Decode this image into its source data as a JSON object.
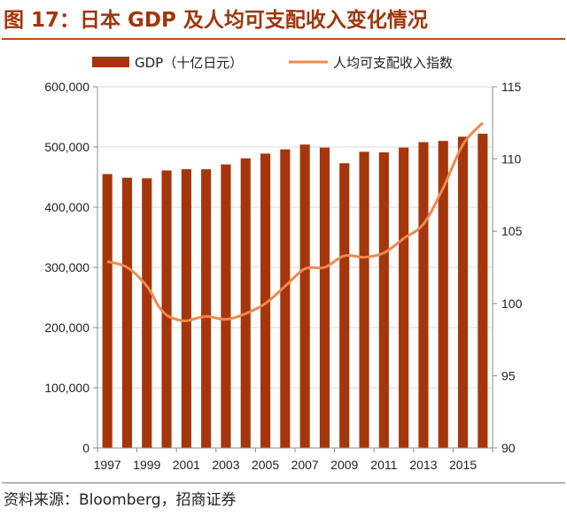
{
  "figure": {
    "title": "图 17：日本 GDP 及人均可支配收入变化情况",
    "source": "资料来源：Bloomberg，招商证券"
  },
  "colors": {
    "bar": "#a5360c",
    "line": "#f0894b",
    "title": "#a0360c"
  },
  "chart_data": {
    "type": "bar+line",
    "categories": [
      "1997",
      "1998",
      "1999",
      "2000",
      "2001",
      "2002",
      "2003",
      "2004",
      "2005",
      "2006",
      "2007",
      "2008",
      "2009",
      "2010",
      "2011",
      "2012",
      "2013",
      "2014",
      "2015",
      "2016"
    ],
    "xtick_labels": [
      "1997",
      "1999",
      "2001",
      "2003",
      "2005",
      "2007",
      "2009",
      "2011",
      "2013",
      "2015"
    ],
    "series": [
      {
        "name": "GDP（十亿日元）",
        "type": "bar",
        "axis": "left",
        "values": [
          455000,
          449000,
          448000,
          461000,
          463000,
          463000,
          471000,
          481000,
          489000,
          496000,
          504000,
          499000,
          473000,
          492000,
          491000,
          499000,
          508000,
          510000,
          517000,
          522000
        ]
      },
      {
        "name": "人均可支配收入指数",
        "type": "line",
        "axis": "right",
        "x": [
          1997,
          1998,
          1999,
          1999.6,
          2000,
          2000.5,
          2001,
          2002,
          2003,
          2004,
          2005,
          2006,
          2007,
          2008,
          2009,
          2010,
          2011,
          2012,
          2013,
          2014,
          2015,
          2016
        ],
        "values": [
          102.9,
          102.5,
          101.2,
          99.8,
          99.2,
          98.9,
          98.8,
          99.1,
          98.9,
          99.3,
          100.0,
          101.2,
          102.4,
          102.5,
          103.3,
          103.2,
          103.5,
          104.5,
          105.5,
          108.0,
          111.0,
          112.5
        ]
      }
    ],
    "y_left": {
      "min": 0,
      "max": 600000,
      "ticks": [
        "0",
        "100,000",
        "200,000",
        "300,000",
        "400,000",
        "500,000",
        "600,000"
      ]
    },
    "y_right": {
      "min": 90,
      "max": 115,
      "ticks": [
        "90",
        "95",
        "100",
        "105",
        "110",
        "115"
      ]
    },
    "grid": true,
    "legend_position": "top"
  }
}
